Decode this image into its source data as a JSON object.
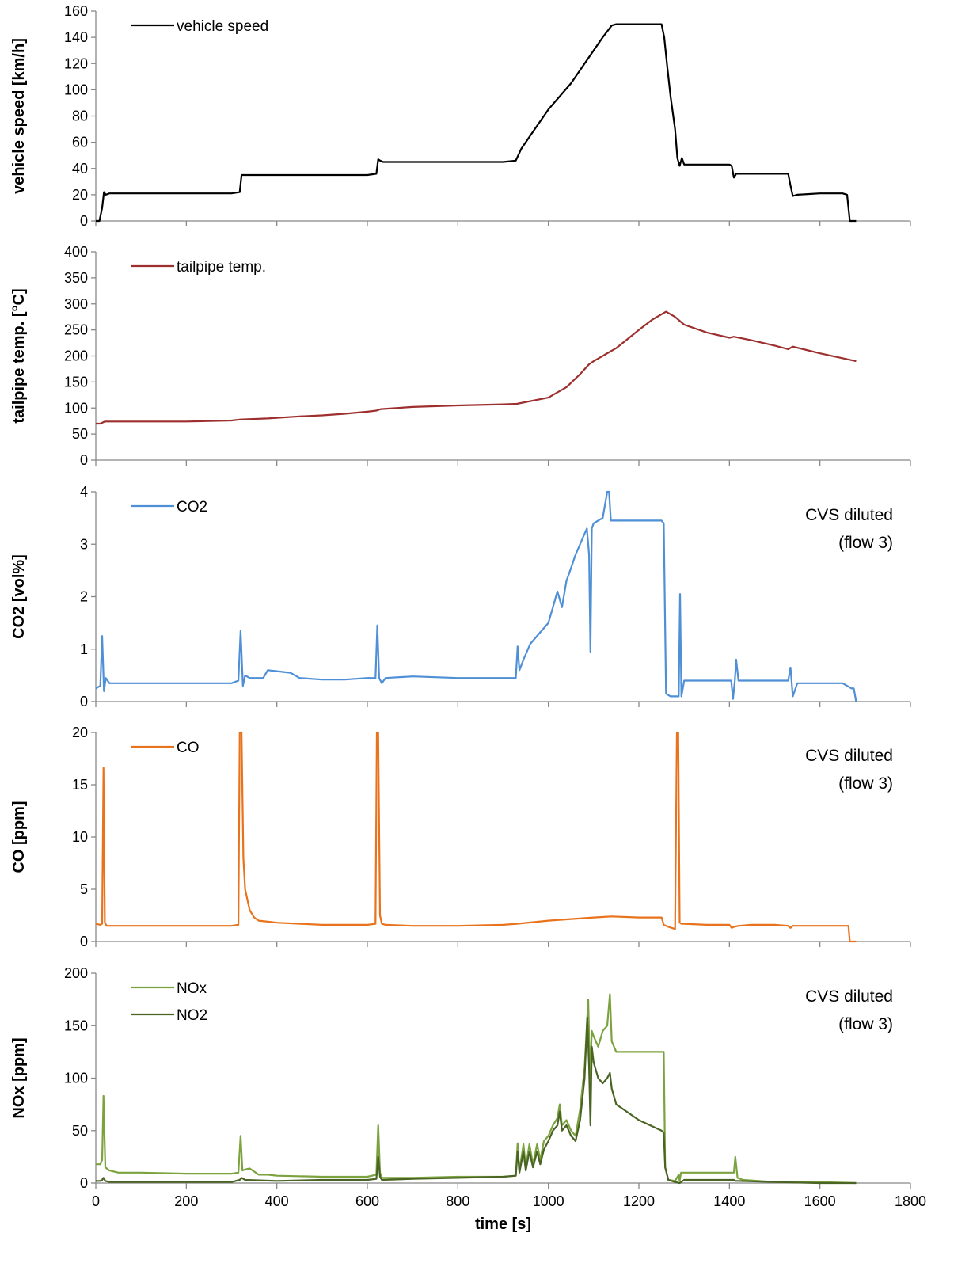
{
  "chart_data": {
    "type": "line",
    "xlabel": "time [s]",
    "x_ticks": [
      "0",
      "200",
      "400",
      "600",
      "800",
      "1000",
      "1200",
      "1400",
      "1600",
      "1800"
    ],
    "xlim": [
      0,
      1800
    ],
    "panels": [
      {
        "ylabel": "vehicle speed [km/h]",
        "ylim": [
          0,
          160
        ],
        "y_ticks": [
          "0",
          "20",
          "40",
          "60",
          "80",
          "100",
          "120",
          "140",
          "160"
        ],
        "note": [],
        "legend_placement": "top-left",
        "series": [
          {
            "name": "vehicle speed",
            "color": "#000000",
            "x": [
              0,
              8,
              14,
              18,
              22,
              30,
              40,
              60,
              100,
              150,
              200,
              250,
              300,
              318,
              322,
              330,
              400,
              500,
              600,
              620,
              624,
              628,
              635,
              700,
              800,
              900,
              928,
              940,
              960,
              1000,
              1050,
              1080,
              1100,
              1120,
              1140,
              1150,
              1200,
              1250,
              1256,
              1262,
              1270,
              1280,
              1285,
              1290,
              1295,
              1300,
              1350,
              1400,
              1405,
              1410,
              1415,
              1420,
              1450,
              1500,
              1530,
              1535,
              1540,
              1550,
              1600,
              1650,
              1660,
              1663,
              1666,
              1680
            ],
            "y": [
              0,
              0,
              10,
              22,
              20,
              21,
              21,
              21,
              21,
              21,
              21,
              21,
              21,
              22,
              35,
              35,
              35,
              35,
              35,
              36,
              47,
              46,
              45,
              45,
              45,
              45,
              46,
              55,
              65,
              85,
              105,
              120,
              130,
              140,
              149,
              150,
              150,
              150,
              140,
              120,
              95,
              70,
              48,
              42,
              48,
              43,
              43,
              43,
              42,
              33,
              36,
              36,
              36,
              36,
              36,
              27,
              19,
              20,
              21,
              21,
              20,
              10,
              0,
              0
            ]
          }
        ]
      },
      {
        "ylabel": "tailpipe temp. [°C]",
        "ylim": [
          0,
          400
        ],
        "y_ticks": [
          "0",
          "50",
          "100",
          "150",
          "200",
          "250",
          "300",
          "350",
          "400"
        ],
        "note": [],
        "legend_placement": "top-left",
        "series": [
          {
            "name": "tailpipe temp.",
            "color": "#9E2F2F",
            "x": [
              0,
              10,
              20,
              50,
              100,
              200,
              300,
              320,
              380,
              450,
              500,
              550,
              600,
              620,
              630,
              700,
              800,
              900,
              930,
              1000,
              1040,
              1070,
              1090,
              1100,
              1150,
              1200,
              1230,
              1260,
              1280,
              1300,
              1350,
              1400,
              1410,
              1450,
              1500,
              1530,
              1540,
              1600,
              1680
            ],
            "y": [
              70,
              70,
              74,
              74,
              74,
              74,
              76,
              78,
              80,
              84,
              86,
              89,
              93,
              95,
              98,
              102,
              105,
              107,
              108,
              120,
              140,
              165,
              184,
              190,
              215,
              250,
              270,
              285,
              275,
              260,
              245,
              235,
              237,
              230,
              220,
              213,
              218,
              205,
              190
            ]
          }
        ]
      },
      {
        "ylabel": "CO2 [vol%]",
        "ylim": [
          0,
          4
        ],
        "y_ticks": [
          "0",
          "1",
          "2",
          "3",
          "4"
        ],
        "note": [
          "CVS diluted",
          "(flow 3)"
        ],
        "legend_placement": "top-left",
        "series": [
          {
            "name": "CO2",
            "color": "#4F8FD6",
            "x": [
              0,
              10,
              14,
              18,
              22,
              30,
              50,
              100,
              150,
              200,
              250,
              300,
              315,
              320,
              325,
              330,
              340,
              370,
              380,
              400,
              430,
              450,
              500,
              550,
              600,
              618,
              622,
              626,
              632,
              640,
              700,
              800,
              900,
              928,
              932,
              936,
              945,
              960,
              980,
              1000,
              1010,
              1020,
              1030,
              1040,
              1050,
              1060,
              1070,
              1080,
              1085,
              1090,
              1093,
              1096,
              1100,
              1110,
              1120,
              1130,
              1134,
              1138,
              1142,
              1150,
              1200,
              1250,
              1255,
              1260,
              1270,
              1280,
              1285,
              1288,
              1291,
              1294,
              1300,
              1350,
              1400,
              1404,
              1408,
              1412,
              1415,
              1420,
              1450,
              1500,
              1525,
              1530,
              1535,
              1540,
              1550,
              1600,
              1650,
              1660,
              1670,
              1675,
              1680
            ],
            "y": [
              0.25,
              0.3,
              1.25,
              0.2,
              0.45,
              0.35,
              0.35,
              0.35,
              0.35,
              0.35,
              0.35,
              0.35,
              0.4,
              1.35,
              0.3,
              0.5,
              0.45,
              0.45,
              0.6,
              0.58,
              0.55,
              0.45,
              0.42,
              0.42,
              0.45,
              0.45,
              1.45,
              0.45,
              0.35,
              0.45,
              0.48,
              0.45,
              0.45,
              0.45,
              1.05,
              0.6,
              0.8,
              1.1,
              1.3,
              1.5,
              1.8,
              2.1,
              1.8,
              2.3,
              2.55,
              2.8,
              3.0,
              3.2,
              3.3,
              2.8,
              0.95,
              3.3,
              3.4,
              3.45,
              3.5,
              4.0,
              4.0,
              3.45,
              3.45,
              3.45,
              3.45,
              3.45,
              3.4,
              0.15,
              0.1,
              0.1,
              0.1,
              0.1,
              2.05,
              0.1,
              0.4,
              0.4,
              0.4,
              0.4,
              0.05,
              0.4,
              0.8,
              0.4,
              0.4,
              0.4,
              0.4,
              0.4,
              0.65,
              0.1,
              0.35,
              0.35,
              0.35,
              0.3,
              0.25,
              0.25,
              0.0
            ]
          }
        ]
      },
      {
        "ylabel": "CO [ppm]",
        "ylim": [
          0,
          20
        ],
        "y_ticks": [
          "0",
          "5",
          "10",
          "15",
          "20"
        ],
        "note": [
          "CVS diluted",
          "(flow 3)"
        ],
        "legend_placement": "top-left",
        "series": [
          {
            "name": "CO",
            "color": "#E8731C",
            "x": [
              0,
              10,
              14,
              17,
              20,
              24,
              50,
              100,
              200,
              300,
              315,
              318,
              322,
              326,
              330,
              340,
              350,
              360,
              380,
              400,
              500,
              600,
              618,
              621,
              624,
              628,
              632,
              640,
              700,
              800,
              900,
              930,
              1000,
              1100,
              1140,
              1200,
              1250,
              1255,
              1265,
              1280,
              1284,
              1287,
              1290,
              1294,
              1300,
              1350,
              1400,
              1405,
              1410,
              1420,
              1450,
              1500,
              1530,
              1535,
              1540,
              1600,
              1650,
              1663,
              1666,
              1680
            ],
            "y": [
              1.7,
              1.6,
              1.7,
              16.6,
              1.8,
              1.5,
              1.5,
              1.5,
              1.5,
              1.5,
              1.6,
              20,
              20,
              8,
              5,
              3.0,
              2.3,
              2.0,
              1.9,
              1.8,
              1.6,
              1.6,
              1.7,
              20,
              20,
              2.5,
              1.7,
              1.6,
              1.5,
              1.5,
              1.6,
              1.7,
              2.0,
              2.3,
              2.4,
              2.3,
              2.3,
              1.6,
              1.4,
              1.2,
              20,
              20,
              1.8,
              1.7,
              1.7,
              1.6,
              1.6,
              1.3,
              1.4,
              1.5,
              1.6,
              1.6,
              1.5,
              1.3,
              1.5,
              1.5,
              1.5,
              1.5,
              0.0,
              0.0
            ]
          }
        ]
      },
      {
        "ylabel": "NOx [ppm]",
        "ylim": [
          0,
          200
        ],
        "y_ticks": [
          "0",
          "50",
          "100",
          "150",
          "200"
        ],
        "note": [
          "CVS diluted",
          "(flow 3)"
        ],
        "legend_placement": "top-left",
        "series": [
          {
            "name": "NOx",
            "color": "#7BA23F",
            "x": [
              0,
              10,
              14,
              17,
              21,
              30,
              50,
              100,
              200,
              300,
              315,
              320,
              324,
              330,
              340,
              360,
              380,
              400,
              500,
              600,
              620,
              624,
              628,
              632,
              640,
              700,
              800,
              900,
              928,
              932,
              936,
              945,
              950,
              958,
              966,
              975,
              982,
              990,
              1000,
              1010,
              1020,
              1025,
              1030,
              1040,
              1050,
              1060,
              1070,
              1080,
              1088,
              1092,
              1096,
              1100,
              1110,
              1120,
              1130,
              1136,
              1140,
              1150,
              1200,
              1250,
              1255,
              1258,
              1265,
              1280,
              1288,
              1290,
              1293,
              1300,
              1350,
              1400,
              1410,
              1413,
              1418,
              1430,
              1500,
              1600,
              1680
            ],
            "y": [
              18,
              18,
              22,
              83,
              15,
              12,
              10,
              10,
              9,
              9,
              10,
              45,
              12,
              13,
              14,
              8,
              8,
              7,
              6,
              6,
              8,
              55,
              10,
              5,
              5,
              5,
              6,
              6,
              7,
              38,
              12,
              37,
              15,
              37,
              18,
              37,
              22,
              40,
              45,
              55,
              62,
              75,
              55,
              60,
              50,
              45,
              70,
              110,
              175,
              100,
              145,
              140,
              130,
              145,
              150,
              180,
              135,
              125,
              125,
              125,
              125,
              15,
              3,
              2,
              8,
              2,
              10,
              10,
              10,
              10,
              10,
              25,
              5,
              3,
              1,
              1,
              0
            ]
          },
          {
            "name": "NO2",
            "color": "#4A6424",
            "x": [
              0,
              10,
              14,
              17,
              21,
              30,
              100,
              200,
              300,
              318,
              322,
              330,
              400,
              500,
              600,
              620,
              624,
              628,
              632,
              700,
              800,
              900,
              928,
              932,
              936,
              945,
              950,
              958,
              966,
              975,
              982,
              990,
              1000,
              1010,
              1020,
              1025,
              1030,
              1040,
              1050,
              1060,
              1070,
              1080,
              1086,
              1090,
              1093,
              1096,
              1100,
              1110,
              1120,
              1130,
              1136,
              1140,
              1150,
              1200,
              1250,
              1255,
              1258,
              1265,
              1280,
              1290,
              1300,
              1400,
              1410,
              1413,
              1418,
              1500,
              1600,
              1680
            ],
            "y": [
              2,
              2,
              3,
              5,
              2,
              1,
              1,
              1,
              1,
              3,
              5,
              3,
              2,
              3,
              3,
              4,
              25,
              6,
              3,
              4,
              5,
              6,
              7,
              30,
              10,
              30,
              12,
              30,
              15,
              30,
              18,
              32,
              40,
              50,
              55,
              68,
              50,
              55,
              45,
              40,
              60,
              100,
              158,
              110,
              55,
              130,
              115,
              100,
              95,
              100,
              105,
              90,
              75,
              60,
              50,
              48,
              15,
              3,
              1,
              0,
              3,
              3,
              3,
              2,
              2,
              1,
              0,
              0
            ]
          }
        ]
      }
    ]
  }
}
